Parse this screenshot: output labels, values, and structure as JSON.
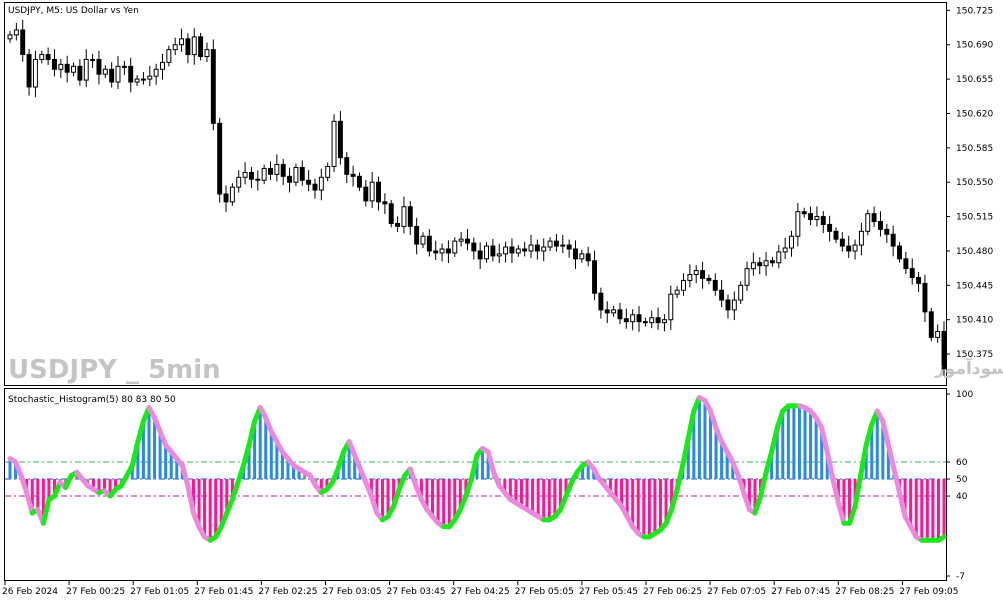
{
  "chart_data": [
    {
      "type": "candlestick",
      "title": "USDJPY, M5:  US Dollar vs Yen",
      "watermark_en": "USDJPY _ 5min",
      "watermark_fa": "انتشار در سایت سودآموز",
      "ylim": [
        150.343,
        150.733
      ],
      "y_ticks": [
        "150.725",
        "150.690",
        "150.655",
        "150.620",
        "150.585",
        "150.550",
        "150.515",
        "150.480",
        "150.445",
        "150.410",
        "150.375"
      ],
      "x_ticks": [
        "26 Feb 2024",
        "27 Feb 00:25",
        "27 Feb 01:05",
        "27 Feb 01:45",
        "27 Feb 02:25",
        "27 Feb 03:05",
        "27 Feb 03:45",
        "27 Feb 04:25",
        "27 Feb 05:05",
        "27 Feb 05:45",
        "27 Feb 06:25",
        "27 Feb 07:05",
        "27 Feb 07:45",
        "27 Feb 08:25",
        "27 Feb 09:05"
      ],
      "close": [
        150.7,
        150.705,
        150.68,
        150.647,
        150.675,
        150.68,
        150.675,
        150.665,
        150.67,
        150.662,
        150.668,
        150.654,
        150.675,
        150.675,
        150.66,
        150.665,
        150.652,
        150.668,
        150.668,
        150.652,
        150.655,
        150.655,
        150.658,
        150.665,
        150.672,
        150.685,
        150.69,
        150.696,
        150.68,
        150.698,
        150.678,
        150.685,
        150.61,
        150.538,
        150.53,
        150.545,
        150.555,
        150.56,
        150.553,
        150.552,
        150.564,
        150.558,
        150.568,
        150.556,
        150.55,
        150.565,
        150.552,
        150.548,
        150.542,
        150.555,
        150.566,
        150.612,
        150.575,
        150.558,
        150.556,
        150.545,
        150.531,
        150.55,
        150.53,
        150.528,
        150.508,
        150.505,
        150.525,
        150.505,
        150.487,
        150.495,
        150.48,
        150.478,
        150.482,
        150.478,
        150.49,
        150.492,
        150.488,
        150.48,
        150.472,
        150.485,
        150.475,
        150.477,
        150.484,
        150.478,
        150.482,
        150.48,
        150.486,
        150.48,
        150.484,
        150.49,
        150.485,
        150.486,
        150.482,
        150.472,
        150.477,
        150.47,
        150.437,
        150.42,
        150.417,
        150.42,
        150.411,
        150.408,
        150.415,
        150.408,
        150.407,
        150.412,
        150.407,
        150.41,
        150.436,
        150.44,
        150.45,
        150.456,
        150.46,
        150.452,
        150.45,
        150.44,
        150.43,
        150.42,
        150.43,
        150.445,
        150.462,
        150.468,
        150.465,
        150.47,
        150.468,
        150.479,
        150.483,
        150.495,
        150.52,
        150.518,
        150.512,
        150.515,
        150.507,
        150.5,
        150.492,
        150.485,
        150.48,
        150.486,
        150.5,
        150.518,
        150.51,
        150.502,
        150.497,
        150.485,
        150.472,
        150.462,
        150.453,
        150.447,
        150.418,
        150.392,
        150.398,
        150.36
      ]
    },
    {
      "type": "bar",
      "title": "Stochastic_Histogram(5) 80 83 80 50",
      "ylim": [
        -7,
        100
      ],
      "y_ticks": [
        "100",
        "60",
        "50",
        "40",
        "-7"
      ],
      "levels": [
        60,
        50,
        40
      ],
      "line_colors": {
        "rising": "#18ea18",
        "falling": "#ee88de"
      },
      "bar_colors": {
        "above": "#2a88e8",
        "below": "#ff1493",
        "neutral": "#8c8c8c"
      },
      "values": [
        62,
        60,
        52,
        42,
        30,
        32,
        24,
        38,
        40,
        48,
        45,
        52,
        54,
        50,
        46,
        44,
        42,
        43,
        40,
        44,
        46,
        52,
        58,
        72,
        84,
        92,
        86,
        78,
        70,
        66,
        62,
        58,
        46,
        30,
        22,
        16,
        14,
        16,
        22,
        30,
        38,
        48,
        58,
        70,
        84,
        92,
        86,
        78,
        72,
        66,
        62,
        58,
        56,
        54,
        52,
        46,
        42,
        44,
        48,
        56,
        66,
        72,
        64,
        56,
        48,
        40,
        30,
        26,
        28,
        34,
        44,
        52,
        56,
        46,
        38,
        32,
        28,
        24,
        22,
        22,
        26,
        32,
        40,
        50,
        64,
        68,
        66,
        54,
        46,
        42,
        38,
        36,
        34,
        32,
        30,
        28,
        26,
        26,
        28,
        32,
        40,
        48,
        54,
        58,
        60,
        56,
        50,
        46,
        42,
        38,
        34,
        28,
        22,
        18,
        16,
        16,
        18,
        20,
        24,
        32,
        44,
        58,
        74,
        90,
        98,
        96,
        90,
        80,
        72,
        66,
        60,
        52,
        42,
        32,
        30,
        40,
        54,
        66,
        80,
        90,
        93,
        93,
        93,
        92,
        90,
        86,
        80,
        66,
        50,
        36,
        24,
        24,
        34,
        52,
        70,
        82,
        90,
        84,
        70,
        56,
        42,
        28,
        22,
        16,
        14,
        14,
        14,
        14,
        16
      ]
    }
  ]
}
